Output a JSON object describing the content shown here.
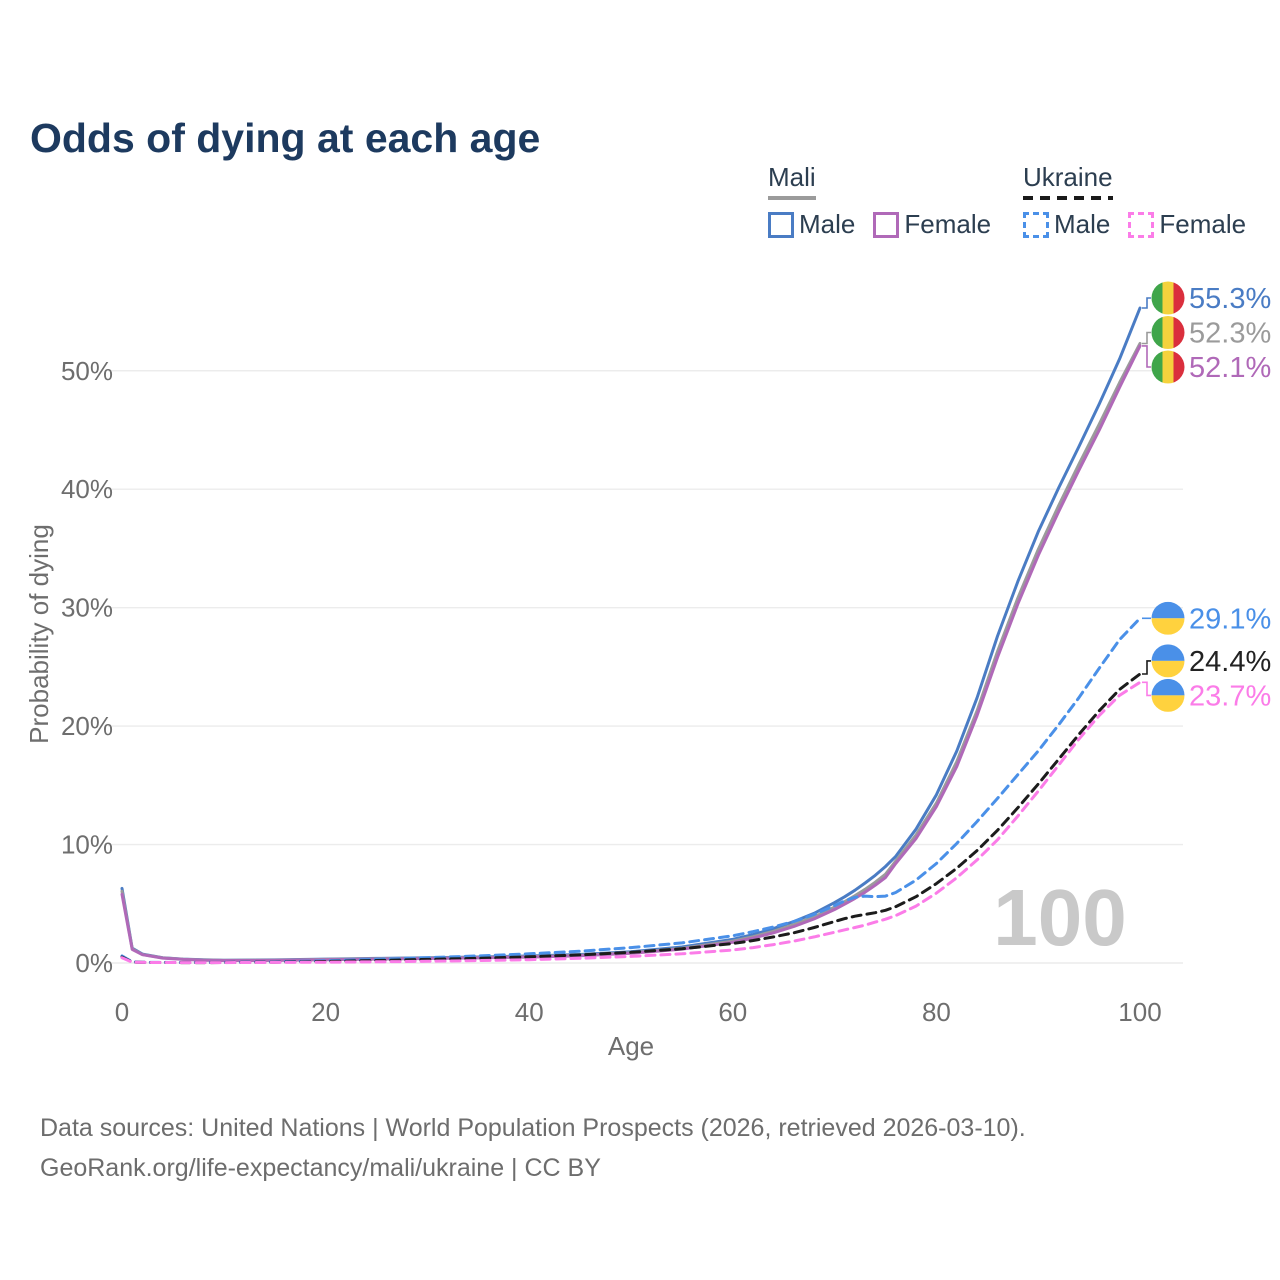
{
  "title": "Odds of dying at each age",
  "watermark": "100",
  "colors": {
    "title": "#1d3a5f",
    "text": "#2c3e50",
    "axis": "#6e6e6e",
    "grid": "#ececec",
    "footer": "#6d6d6d",
    "watermark": "#c9c9c9"
  },
  "flags": {
    "mali": {
      "green": "#3fa54a",
      "yellow": "#f5d23d",
      "red": "#da2f3d"
    },
    "ukraine": {
      "blue": "#4a90e8",
      "yellow": "#ffd23e"
    }
  },
  "legend": {
    "groups": [
      {
        "name": "Mali",
        "line_style": "solid",
        "underline_color": "#9b9b9b",
        "items": [
          {
            "label": "Male",
            "color": "#4a7cc4"
          },
          {
            "label": "Female",
            "color": "#b069b8"
          }
        ]
      },
      {
        "name": "Ukraine",
        "line_style": "dashed",
        "underline_color": "#1a1a1a",
        "items": [
          {
            "label": "Male",
            "color": "#4a90e8"
          },
          {
            "label": "Female",
            "color": "#fb7ce8"
          }
        ]
      }
    ]
  },
  "chart_data": {
    "type": "line",
    "title": "Odds of dying at each age",
    "xlabel": "Age",
    "ylabel": "Probability of dying",
    "xlim": [
      0,
      100
    ],
    "ylim": [
      0,
      58
    ],
    "grid": "horizontal",
    "x_ticks": [
      0,
      20,
      40,
      60,
      80,
      100
    ],
    "y_ticks": [
      {
        "value": 0,
        "label": "0%"
      },
      {
        "value": 10,
        "label": "10%"
      },
      {
        "value": 20,
        "label": "20%"
      },
      {
        "value": 30,
        "label": "30%"
      },
      {
        "value": 40,
        "label": "40%"
      },
      {
        "value": 50,
        "label": "50%"
      }
    ],
    "ages": [
      0,
      1,
      2,
      4,
      6,
      8,
      10,
      15,
      20,
      25,
      30,
      35,
      40,
      45,
      50,
      55,
      60,
      62,
      64,
      66,
      68,
      70,
      71,
      72,
      73,
      74,
      75,
      76,
      78,
      80,
      82,
      84,
      86,
      88,
      90,
      92,
      94,
      96,
      98,
      100
    ],
    "series": [
      {
        "name": "Mali Male",
        "country": "Mali",
        "sex": "Male",
        "color": "#4a7cc4",
        "dash": "solid",
        "flag": "mali",
        "end_label": "55.3%",
        "label_color": "#4a7cc4",
        "values": [
          6.3,
          1.25,
          0.75,
          0.45,
          0.33,
          0.27,
          0.24,
          0.26,
          0.33,
          0.39,
          0.45,
          0.51,
          0.59,
          0.72,
          0.95,
          1.35,
          2.0,
          2.4,
          2.9,
          3.5,
          4.2,
          5.1,
          5.6,
          6.15,
          6.75,
          7.4,
          8.15,
          9.0,
          11.3,
          14.2,
          17.9,
          22.4,
          27.6,
          32.2,
          36.4,
          40.1,
          43.6,
          47.2,
          51.0,
          55.3
        ]
      },
      {
        "name": "Mali Both sexes",
        "country": "Mali",
        "sex": "Both",
        "color": "#9b9b9b",
        "dash": "solid",
        "flag": "mali",
        "end_label": "52.3%",
        "label_color": "#9b9b9b",
        "values": [
          6.05,
          1.2,
          0.72,
          0.43,
          0.31,
          0.25,
          0.22,
          0.24,
          0.3,
          0.36,
          0.41,
          0.47,
          0.54,
          0.66,
          0.87,
          1.23,
          1.85,
          2.22,
          2.68,
          3.24,
          3.9,
          4.72,
          5.18,
          5.68,
          6.22,
          6.82,
          7.5,
          8.6,
          10.8,
          13.5,
          17.0,
          21.3,
          26.3,
          30.8,
          34.9,
          38.6,
          42.1,
          45.5,
          49.0,
          52.3
        ]
      },
      {
        "name": "Mali Female",
        "country": "Mali",
        "sex": "Female",
        "color": "#b069b8",
        "dash": "solid",
        "flag": "mali",
        "end_label": "52.1%",
        "label_color": "#b069b8",
        "values": [
          5.8,
          1.15,
          0.7,
          0.41,
          0.3,
          0.24,
          0.21,
          0.22,
          0.28,
          0.33,
          0.38,
          0.43,
          0.5,
          0.62,
          0.82,
          1.17,
          1.75,
          2.1,
          2.55,
          3.08,
          3.72,
          4.52,
          4.97,
          5.45,
          5.98,
          6.57,
          7.22,
          8.4,
          10.5,
          13.2,
          16.6,
          20.9,
          25.8,
          30.3,
          34.4,
          38.1,
          41.6,
          45.0,
          48.6,
          52.1
        ]
      },
      {
        "name": "Ukraine Male",
        "country": "Ukraine",
        "sex": "Male",
        "color": "#4a90e8",
        "dash": "dashed",
        "flag": "ukraine",
        "end_label": "29.1%",
        "label_color": "#4a90e8",
        "values": [
          0.6,
          0.09,
          0.06,
          0.05,
          0.04,
          0.04,
          0.05,
          0.09,
          0.19,
          0.31,
          0.45,
          0.6,
          0.78,
          1.0,
          1.3,
          1.7,
          2.3,
          2.65,
          3.05,
          3.5,
          4.1,
          4.85,
          5.25,
          5.55,
          5.65,
          5.6,
          5.65,
          5.95,
          7.0,
          8.4,
          10.1,
          11.95,
          13.9,
          15.9,
          17.9,
          20.1,
          22.4,
          24.9,
          27.3,
          29.1
        ]
      },
      {
        "name": "Ukraine Both sexes",
        "country": "Ukraine",
        "sex": "Both",
        "color": "#1c1c1c",
        "dash": "dashed",
        "flag": "ukraine",
        "end_label": "24.4%",
        "label_color": "#222222",
        "values": [
          0.5,
          0.08,
          0.05,
          0.04,
          0.035,
          0.035,
          0.04,
          0.07,
          0.13,
          0.21,
          0.3,
          0.4,
          0.52,
          0.68,
          0.9,
          1.2,
          1.65,
          1.9,
          2.2,
          2.55,
          3.0,
          3.5,
          3.75,
          3.95,
          4.1,
          4.25,
          4.45,
          4.75,
          5.6,
          6.7,
          8.0,
          9.5,
          11.2,
          13.1,
          15.1,
          17.2,
          19.3,
          21.3,
          23.1,
          24.4
        ]
      },
      {
        "name": "Ukraine Female",
        "country": "Ukraine",
        "sex": "Female",
        "color": "#fb7ce8",
        "dash": "dashed",
        "flag": "ukraine",
        "end_label": "23.7%",
        "label_color": "#fb7ce8",
        "values": [
          0.45,
          0.07,
          0.05,
          0.04,
          0.03,
          0.03,
          0.035,
          0.05,
          0.07,
          0.1,
          0.14,
          0.2,
          0.28,
          0.4,
          0.56,
          0.78,
          1.1,
          1.3,
          1.55,
          1.85,
          2.2,
          2.6,
          2.8,
          3.0,
          3.2,
          3.45,
          3.7,
          4.0,
          4.8,
          5.9,
          7.2,
          8.7,
          10.4,
          12.4,
          14.5,
          16.7,
          18.9,
          20.9,
          22.6,
          23.7
        ]
      }
    ]
  },
  "footer": {
    "line1": "Data sources: United Nations | World Population Prospects (2026, retrieved 2026-03-10).",
    "line2": "GeoRank.org/life-expectancy/mali/ukraine | CC BY"
  }
}
